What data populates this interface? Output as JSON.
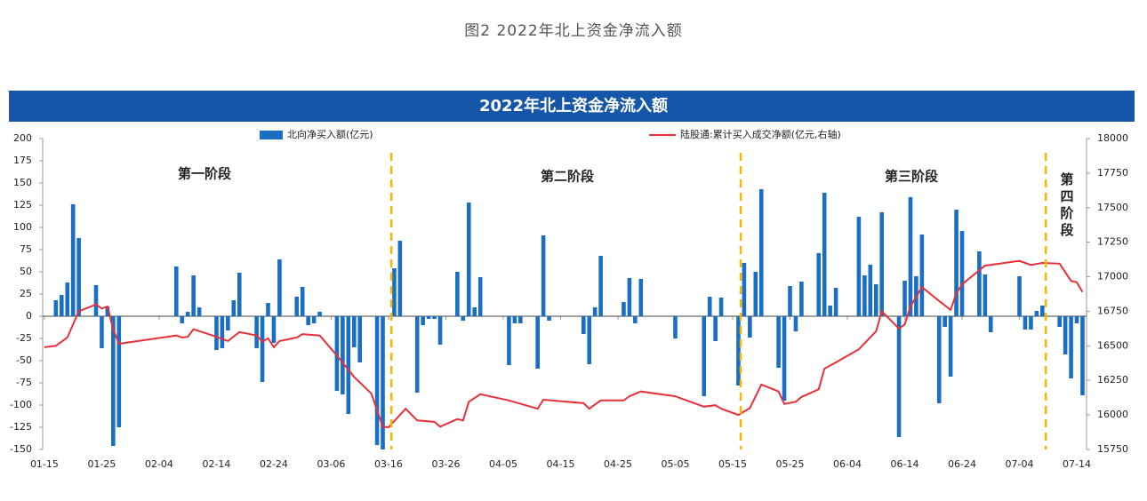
{
  "caption": "图2 2022年北上资金净流入额",
  "chart_data": {
    "type": "bar-line",
    "title": "2022年北上资金净流入额",
    "xlim": [
      -0.3,
      181.7
    ],
    "xticks": [
      {
        "value": 0,
        "label": "01-15"
      },
      {
        "value": 10,
        "label": "01-25"
      },
      {
        "value": 20,
        "label": "02-04"
      },
      {
        "value": 30,
        "label": "02-14"
      },
      {
        "value": 40,
        "label": "02-24"
      },
      {
        "value": 50,
        "label": "03-06"
      },
      {
        "value": 60,
        "label": "03-16"
      },
      {
        "value": 70,
        "label": "03-26"
      },
      {
        "value": 80,
        "label": "04-05"
      },
      {
        "value": 90,
        "label": "04-15"
      },
      {
        "value": 100,
        "label": "04-25"
      },
      {
        "value": 110,
        "label": "05-05"
      },
      {
        "value": 120,
        "label": "05-15"
      },
      {
        "value": 130,
        "label": "05-25"
      },
      {
        "value": 140,
        "label": "06-04"
      },
      {
        "value": 150,
        "label": "06-14"
      },
      {
        "value": 160,
        "label": "06-24"
      },
      {
        "value": 170,
        "label": "07-04"
      },
      {
        "value": 180,
        "label": "07-14"
      }
    ],
    "ylim": [
      -150,
      200
    ],
    "yticks": [
      -150,
      -125,
      -100,
      -75,
      -50,
      -25,
      0,
      25,
      50,
      75,
      100,
      125,
      150,
      175,
      200
    ],
    "y2lim": [
      15750,
      18000
    ],
    "y2ticks": [
      15750,
      16000,
      16250,
      16500,
      16750,
      17000,
      17250,
      17500,
      17750,
      18000
    ],
    "series": [
      {
        "name": "北向净买入额(亿元)",
        "type": "bar",
        "color": "#1a6ec4",
        "x": [
          2,
          3,
          4,
          5,
          6,
          9,
          10,
          11,
          12,
          13,
          23,
          24,
          25,
          26,
          27,
          30,
          31,
          32,
          33,
          34,
          37,
          38,
          39,
          40,
          41,
          44,
          45,
          46,
          47,
          48,
          51,
          52,
          53,
          54,
          55,
          58,
          59,
          61,
          62,
          65,
          66,
          67,
          68,
          69,
          72,
          73,
          74,
          75,
          76,
          81,
          82,
          83,
          86,
          87,
          88,
          94,
          95,
          96,
          97,
          101,
          102,
          103,
          104,
          110,
          115,
          116,
          117,
          118,
          121,
          122,
          123,
          124,
          125,
          128,
          129,
          130,
          131,
          132,
          135,
          136,
          137,
          138,
          142,
          143,
          144,
          145,
          146,
          149,
          150,
          151,
          152,
          153,
          156,
          157,
          158,
          159,
          160,
          163,
          164,
          165,
          170,
          171,
          172,
          173,
          174,
          177,
          178,
          179,
          180,
          181
        ],
        "values": [
          18,
          24,
          38,
          126,
          88,
          35,
          -36,
          11,
          -146,
          -125,
          56,
          -8,
          5,
          46,
          10,
          -38,
          -36,
          -16,
          18,
          49,
          -36,
          -74,
          15,
          -30,
          64,
          22,
          33,
          -10,
          -8,
          5,
          -84,
          -88,
          -110,
          -35,
          -52,
          -145,
          -150,
          54,
          85,
          -86,
          -10,
          -3,
          -3,
          -32,
          50,
          -5,
          128,
          10,
          44,
          -55,
          -8,
          -8,
          -59,
          91,
          -5,
          -20,
          -54,
          10,
          68,
          16,
          43,
          -8,
          42,
          -25,
          -90,
          22,
          -28,
          21,
          -78,
          60,
          -24,
          50,
          143,
          -58,
          -95,
          34,
          -17,
          39,
          71,
          139,
          12,
          32,
          112,
          46,
          58,
          36,
          117,
          -136,
          40,
          134,
          45,
          92,
          -98,
          -12,
          -68,
          120,
          96,
          73,
          47,
          -18,
          45,
          -15,
          -15,
          6,
          12,
          -12,
          -43,
          -70,
          -8,
          -89
        ]
      },
      {
        "name": "陆股通:累计买入成交净额(亿元,右轴)",
        "type": "line",
        "axis": "y2",
        "color": "#e8303a",
        "x": [
          0,
          2,
          4,
          6,
          9,
          10,
          11,
          12,
          13,
          23,
          24,
          25,
          26,
          29,
          32,
          34,
          37,
          38,
          39,
          40,
          41,
          44,
          45,
          48,
          51,
          54,
          57,
          59,
          60,
          63,
          65,
          68,
          69,
          72,
          73,
          74,
          76,
          81,
          86,
          87,
          94,
          95,
          97,
          101,
          102,
          104,
          110,
          115,
          117,
          118,
          121,
          123,
          125,
          128,
          129,
          131,
          132,
          135,
          136,
          138,
          142,
          145,
          146,
          149,
          150,
          151,
          153,
          156,
          158,
          159,
          160,
          164,
          170,
          172,
          174,
          177,
          179,
          180,
          181
        ],
        "values": [
          16490,
          16500,
          16560,
          16750,
          16800,
          16770,
          16785,
          16620,
          16515,
          16575,
          16560,
          16565,
          16620,
          16580,
          16535,
          16600,
          16575,
          16530,
          16555,
          16490,
          16535,
          16560,
          16585,
          16575,
          16430,
          16275,
          16155,
          15915,
          15910,
          16045,
          15960,
          15950,
          15915,
          15970,
          15960,
          16095,
          16150,
          16105,
          16045,
          16110,
          16085,
          16045,
          16105,
          16105,
          16135,
          16170,
          16135,
          16060,
          16070,
          16045,
          16000,
          16050,
          16220,
          16170,
          16080,
          16095,
          16130,
          16185,
          16335,
          16380,
          16475,
          16605,
          16750,
          16625,
          16655,
          16785,
          16925,
          16825,
          16760,
          16880,
          16945,
          17080,
          17115,
          17085,
          17100,
          17095,
          16970,
          16960,
          16890
        ]
      }
    ],
    "phase_dividers": [
      60.5,
      121.4,
      174.6
    ],
    "annotations": [
      "第一阶段",
      "第二阶段",
      "第三阶段",
      "第四阶段"
    ]
  }
}
